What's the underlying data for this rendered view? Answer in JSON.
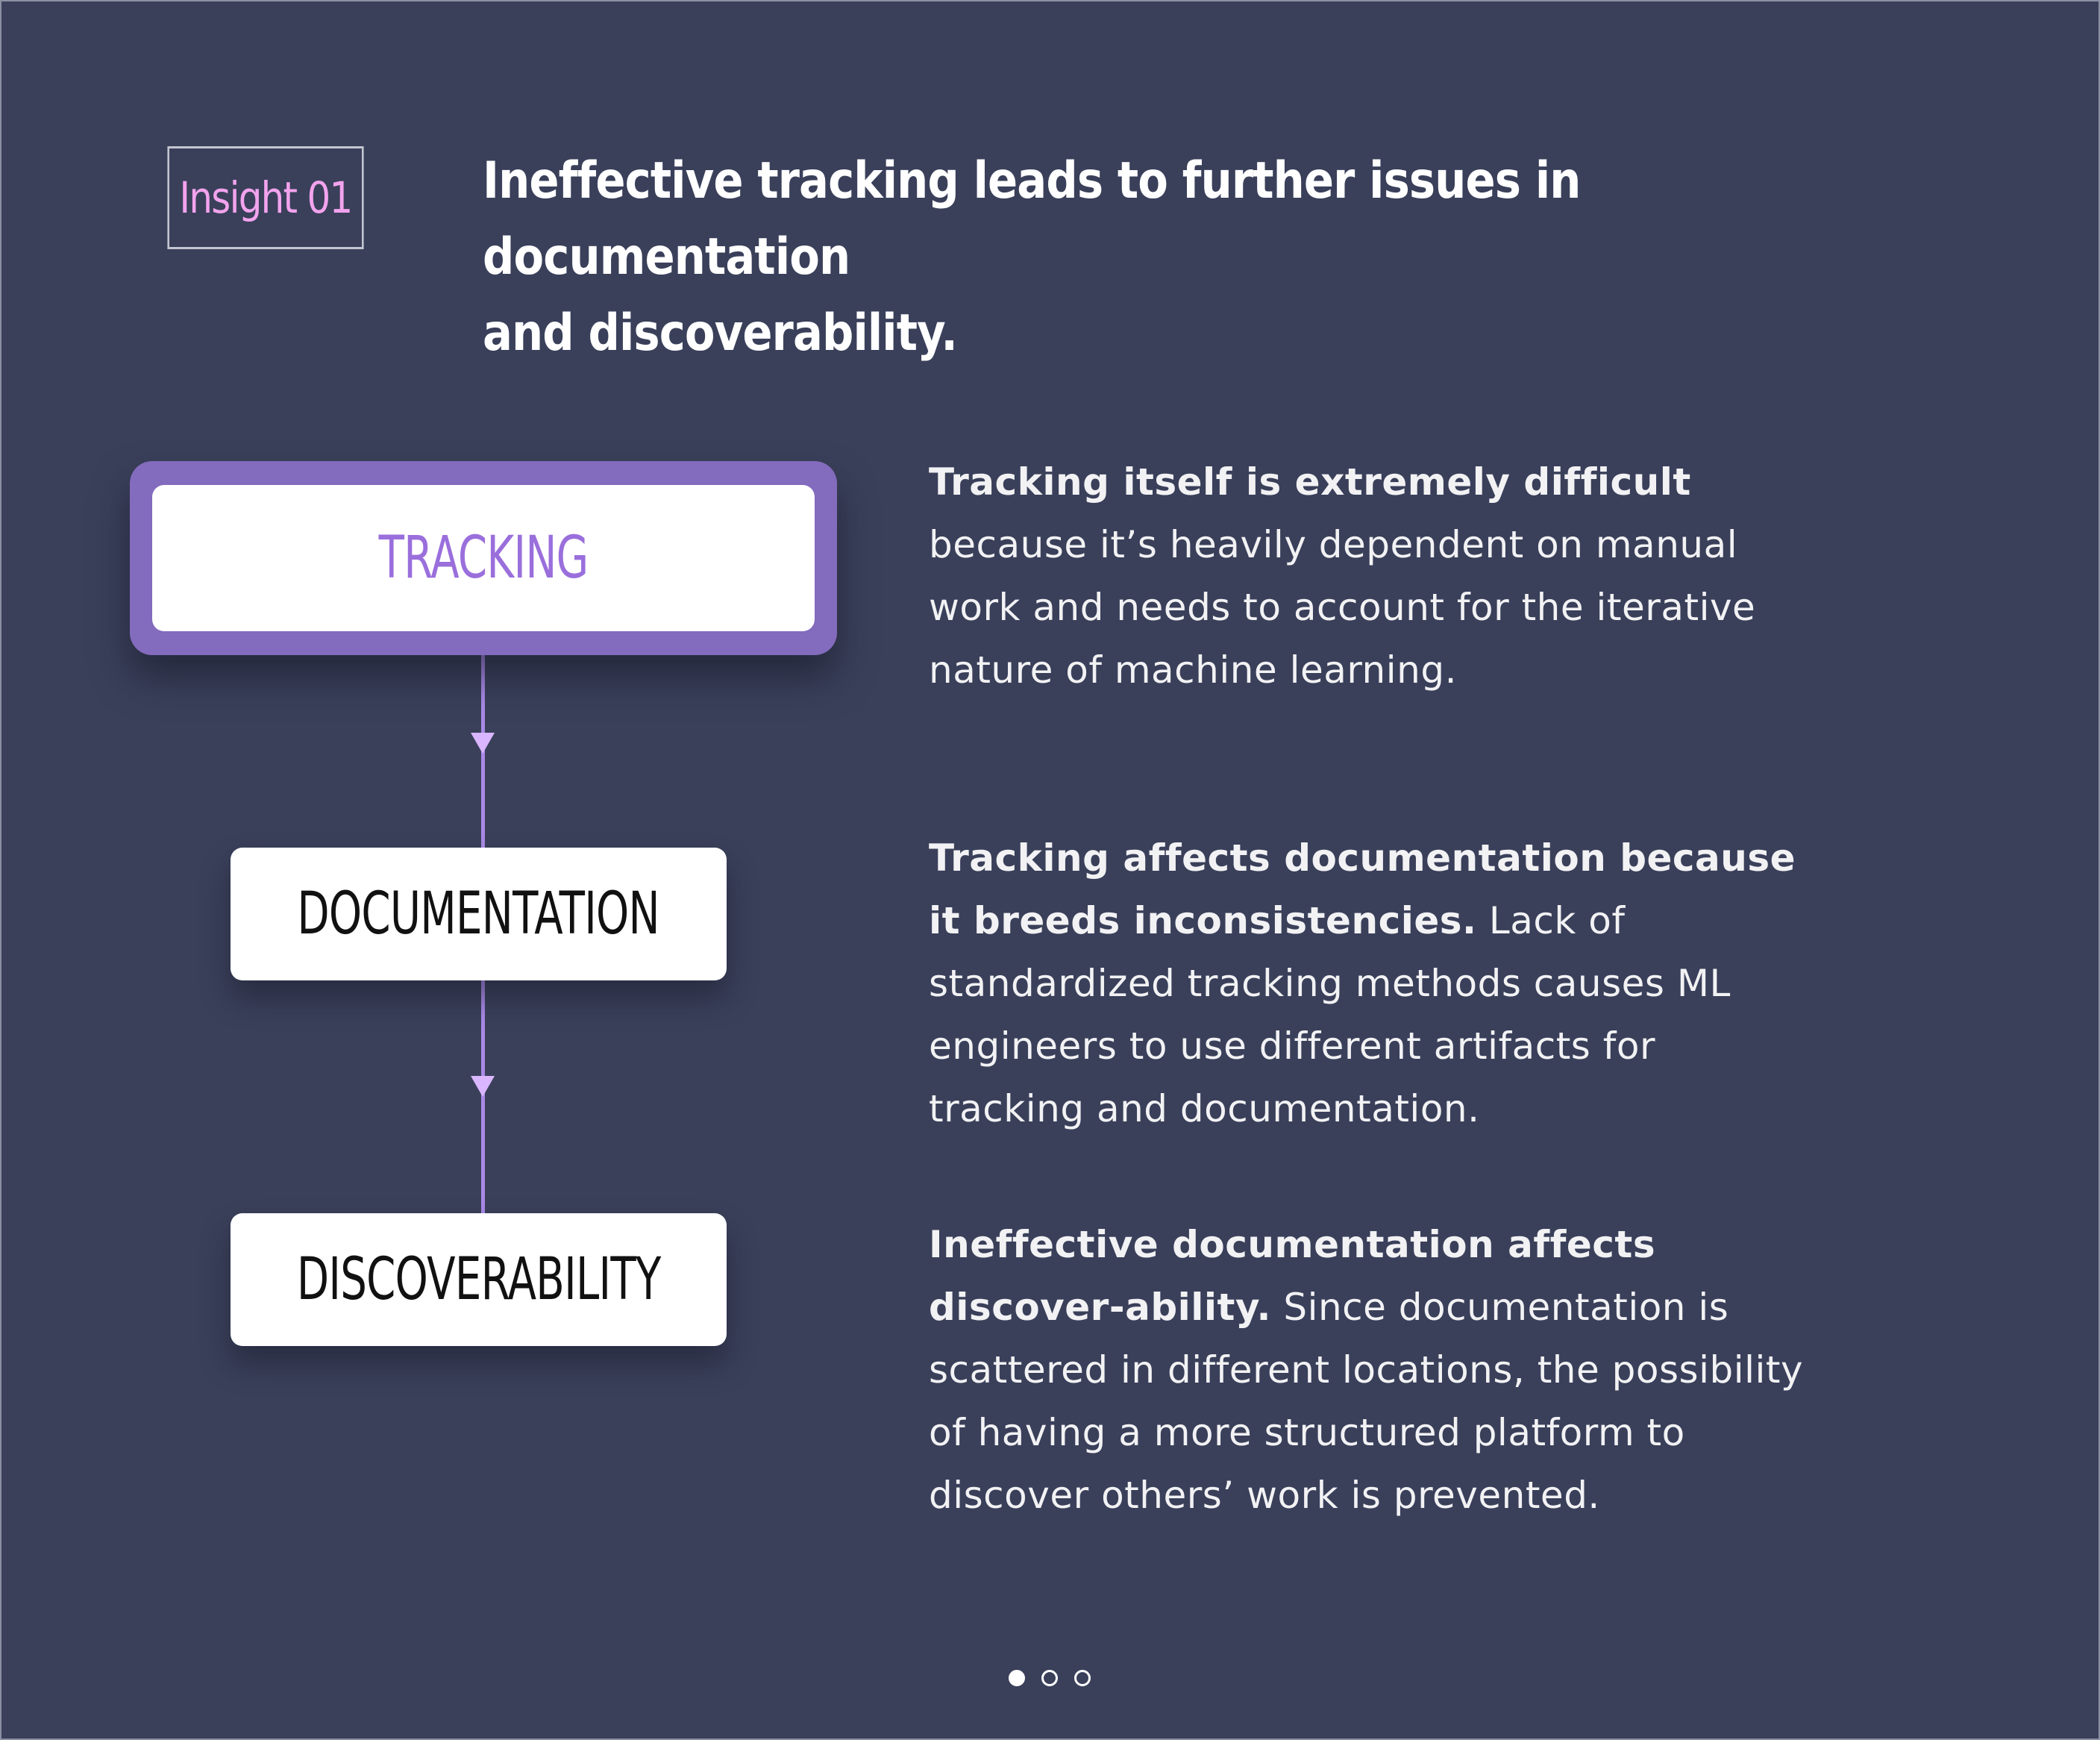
{
  "insight": {
    "badge_label": "Insight 01",
    "headline_line1": "Ineffective tracking leads to further issues in documentation",
    "headline_line2": "and discoverability."
  },
  "flow": {
    "steps": [
      {
        "label": "TRACKING",
        "highlighted": true
      },
      {
        "label": "DOCUMENTATION",
        "highlighted": false
      },
      {
        "label": "DISCOVERABILITY",
        "highlighted": false
      }
    ]
  },
  "descriptions": [
    {
      "bold": "Tracking itself is extremely difficult",
      "rest": " because it’s heavily dependent on manual work and needs to account for the iterative nature of machine learning."
    },
    {
      "bold": "Tracking affects documentation because it breeds inconsistencies.",
      "rest": " Lack of standardized tracking methods causes  ML engineers to use different artifacts for tracking and documentation."
    },
    {
      "bold": "Ineffective documentation affects discover-ability.",
      "rest": " Since documentation is scattered in different locations, the possibility of having a more structured platform to discover others’ work is prevented."
    }
  ],
  "pagination": {
    "total": 3,
    "active_index": 0
  },
  "colors": {
    "background": "#3a405a",
    "accent_purple": "#9a6fdc",
    "badge_pink": "#f3a3ee",
    "tracking_frame": "#836bbd"
  }
}
